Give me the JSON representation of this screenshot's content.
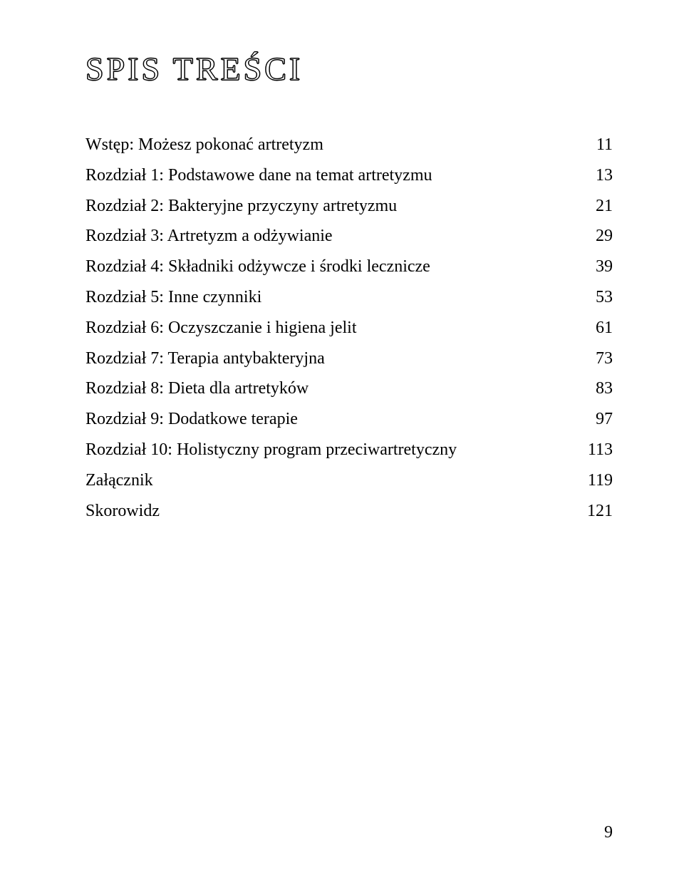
{
  "title": "SPIS TREŚCI",
  "title_fontsize": 46,
  "title_letter_spacing": 4,
  "body_fontsize": 24,
  "line_height": 1.7,
  "text_color": "#000000",
  "background_color": "#ffffff",
  "entries": [
    {
      "label": "Wstęp: Możesz pokonać artretyzm",
      "page": "11"
    },
    {
      "label": "Rozdział  1: Podstawowe dane na temat artretyzmu",
      "page": "13"
    },
    {
      "label": "Rozdział  2: Bakteryjne przyczyny artretyzmu",
      "page": "21"
    },
    {
      "label": "Rozdział  3: Artretyzm a odżywianie",
      "page": "29"
    },
    {
      "label": "Rozdział  4: Składniki odżywcze i środki lecznicze",
      "page": "39"
    },
    {
      "label": "Rozdział  5: Inne czynniki",
      "page": "53"
    },
    {
      "label": "Rozdział  6: Oczyszczanie i higiena jelit",
      "page": "61"
    },
    {
      "label": "Rozdział  7: Terapia antybakteryjna",
      "page": "73"
    },
    {
      "label": "Rozdział  8: Dieta dla artretyków",
      "page": "83"
    },
    {
      "label": "Rozdział  9: Dodatkowe terapie",
      "page": "97"
    },
    {
      "label": "Rozdział 10: Holistyczny program przeciwartretyczny",
      "page": "113"
    },
    {
      "label": "Załącznik",
      "page": "119"
    },
    {
      "label": "Skorowidz",
      "page": "121"
    }
  ],
  "page_number": "9"
}
